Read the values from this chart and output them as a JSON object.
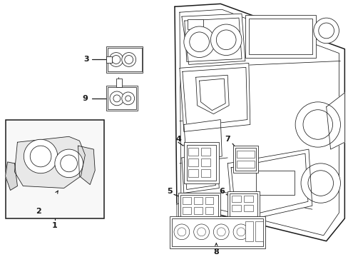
{
  "background_color": "#ffffff",
  "line_color": "#1a1a1a",
  "fig_width": 4.89,
  "fig_height": 3.6,
  "dpi": 100,
  "lw_main": 1.1,
  "lw_thin": 0.55,
  "lw_med": 0.75
}
